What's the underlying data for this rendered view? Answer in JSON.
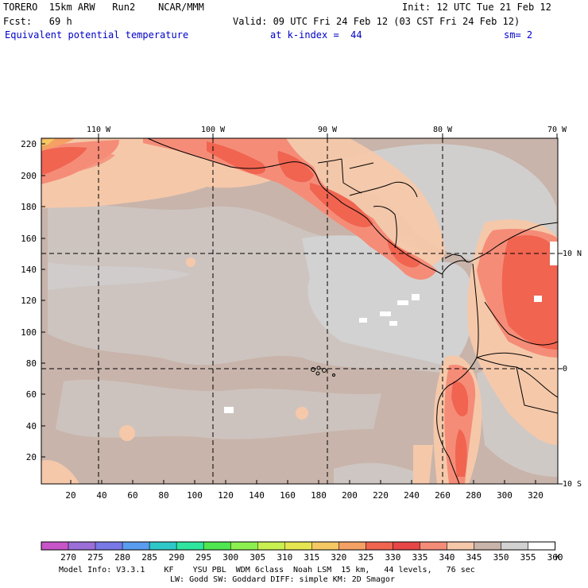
{
  "header": {
    "model": "TORERO  15km ARW   Run2    NCAR/MMM",
    "init": "Init: 12 UTC Tue 21 Feb 12",
    "fcst": "Fcst:   69 h",
    "valid": "Valid: 09 UTC Fri 24 Feb 12 (03 CST Fri 24 Feb 12)",
    "field": "Equivalent potential temperature",
    "level": "at k-index =  44",
    "smooth": "sm= 2"
  },
  "map": {
    "lon_labels": [
      "110 W",
      "100 W",
      "90 W",
      "80 W",
      "70 W"
    ],
    "lat_labels": [
      "10 N",
      "0",
      "10 S"
    ],
    "y_ticks": [
      "220",
      "200",
      "180",
      "160",
      "140",
      "120",
      "100",
      "80",
      "60",
      "40",
      "20"
    ],
    "x_ticks": [
      "20",
      "40",
      "60",
      "80",
      "100",
      "120",
      "140",
      "160",
      "180",
      "200",
      "220",
      "240",
      "260",
      "280",
      "300",
      "320"
    ]
  },
  "colorbar": {
    "labels": [
      "270",
      "275",
      "280",
      "285",
      "290",
      "295",
      "300",
      "305",
      "310",
      "315",
      "320",
      "325",
      "330",
      "335",
      "340",
      "345",
      "350",
      "355",
      "360"
    ],
    "unit": "K",
    "colors": [
      "#c855c8",
      "#9b6ed8",
      "#7878e6",
      "#5a9cf0",
      "#2ec8c8",
      "#2ee6a0",
      "#50e650",
      "#8cf050",
      "#c8f050",
      "#e6e650",
      "#f5c864",
      "#f5a064",
      "#f06450",
      "#e64646",
      "#f58c78",
      "#f5c8aa",
      "#c8b4aa",
      "#d2d2d2",
      "#ffffff"
    ]
  },
  "footer": {
    "line1": "Model Info: V3.3.1    KF    YSU PBL  WDM 6class  Noah LSM  15 km,   44 levels,   76 sec",
    "line2": "LW: Godd SW: Goddard DIFF: simple KM: 2D Smagor"
  }
}
